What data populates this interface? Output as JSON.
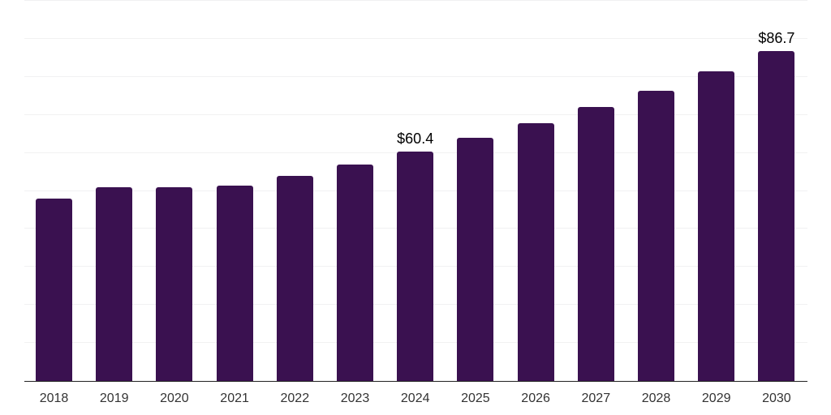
{
  "chart_data": {
    "type": "bar",
    "title": "",
    "xlabel": "",
    "ylabel": "",
    "categories": [
      "2018",
      "2019",
      "2020",
      "2021",
      "2022",
      "2023",
      "2024",
      "2025",
      "2026",
      "2027",
      "2028",
      "2029",
      "2030"
    ],
    "values": [
      47.9,
      51.0,
      50.9,
      51.3,
      53.9,
      57.0,
      60.4,
      63.9,
      67.8,
      72.0,
      76.4,
      81.5,
      86.7
    ],
    "data_labels": {
      "2024": "$60.4",
      "2030": "$86.7"
    },
    "currency_prefix": "$",
    "ylim": [
      0,
      100
    ],
    "grid_step": 10,
    "grid": true,
    "legend_position": "none",
    "y_axis_tick_labels_visible": false,
    "colors": {
      "bar": "#3A1150",
      "gridline": "#f1f1f2",
      "axis_line": "#222222",
      "x_tick_label": "#333333",
      "value_label": "#000000",
      "background": "#ffffff"
    }
  }
}
